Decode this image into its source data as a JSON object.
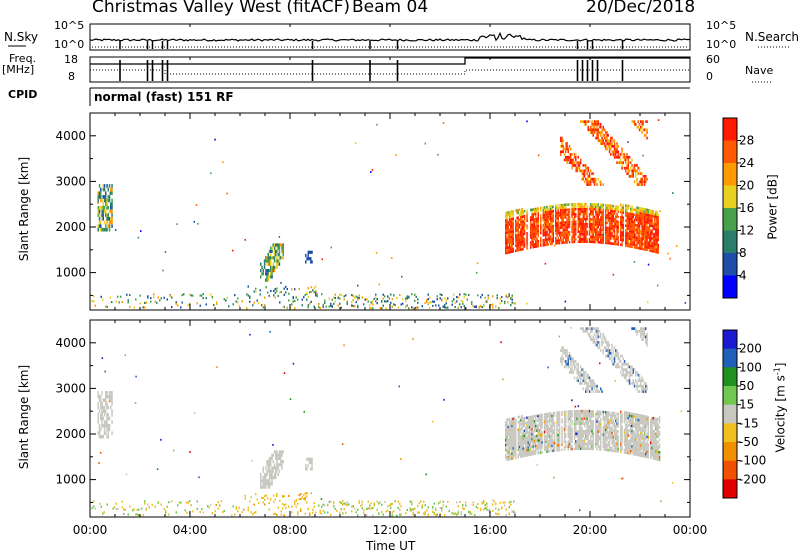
{
  "header": {
    "title": "Christmas Valley West (fitACF)",
    "beam": "Beam 04",
    "date": "20/Dec/2018"
  },
  "summary_panels": {
    "nsky_label": "N.Sky",
    "nsearch_label": "N.Search",
    "freq_label": "Freq.",
    "freq_unit": "[MHz]",
    "nave_label": "Nave",
    "cpid_label": "CPID",
    "cpid_value": "normal (fast) 151 RF",
    "nsky_ticks": [
      "10^5",
      "10^0"
    ],
    "nsky_ticks_right": [
      "10^5",
      "10^0"
    ],
    "freq_ticks": [
      "18",
      "8"
    ],
    "nave_ticks": [
      "60",
      "0"
    ]
  },
  "colors": {
    "power_scale": [
      "#0000ff",
      "#1f4fa8",
      "#2a7d6a",
      "#48a04a",
      "#e8d020",
      "#ff9a00",
      "#ff5a00",
      "#ff1a00"
    ],
    "velocity_scale": [
      "#1a1ad0",
      "#2060b8",
      "#209020",
      "#70c850",
      "#c8c8c0",
      "#f0c020",
      "#f09000",
      "#f05000",
      "#e00000"
    ],
    "ground_scatter": "#c8c8c0"
  },
  "chart_data": [
    {
      "type": "heatmap",
      "name": "power",
      "ylabel": "Slant Range [km]",
      "yticks": [
        "4000",
        "3000",
        "2000",
        "1000"
      ],
      "ylim": [
        180,
        4500
      ],
      "xlim_hours": [
        0,
        24
      ],
      "colorbar_label": "Power [dB]",
      "colorbar_ticks": [
        "28",
        "24",
        "20",
        "16",
        "12",
        "8",
        "4"
      ],
      "colorbar_range": [
        0,
        30
      ],
      "regions": [
        {
          "t": [
            0.3,
            0.9
          ],
          "r": [
            1900,
            2900
          ],
          "level": 12
        },
        {
          "t": [
            6.8,
            7.7
          ],
          "r": [
            800,
            1600
          ],
          "level": 10
        },
        {
          "t": [
            8.6,
            8.9
          ],
          "r": [
            1200,
            1400
          ],
          "level": 6
        },
        {
          "t": [
            16.6,
            22.8
          ],
          "r": [
            1400,
            2500
          ],
          "level": 26
        },
        {
          "t": [
            18.8,
            22.3
          ],
          "r": [
            2900,
            4300
          ],
          "level": 22
        },
        {
          "t": [
            0.0,
            17.0
          ],
          "r": [
            180,
            600
          ],
          "level": 14
        }
      ]
    },
    {
      "type": "heatmap",
      "name": "velocity",
      "ylabel": "Slant Range [km]",
      "yticks": [
        "4000",
        "3000",
        "2000",
        "1000"
      ],
      "ylim": [
        180,
        4500
      ],
      "xlim_hours": [
        0,
        24
      ],
      "colorbar_label": "Velocity [m s^-1]",
      "colorbar_ticks": [
        "200",
        "100",
        "50",
        "15",
        "-15",
        "-50",
        "-100",
        "-200"
      ],
      "colorbar_range": [
        -250,
        250
      ]
    }
  ],
  "xaxis": {
    "label": "Time UT",
    "ticks": [
      "00:00",
      "04:00",
      "08:00",
      "12:00",
      "16:00",
      "20:00",
      "00:00"
    ]
  }
}
